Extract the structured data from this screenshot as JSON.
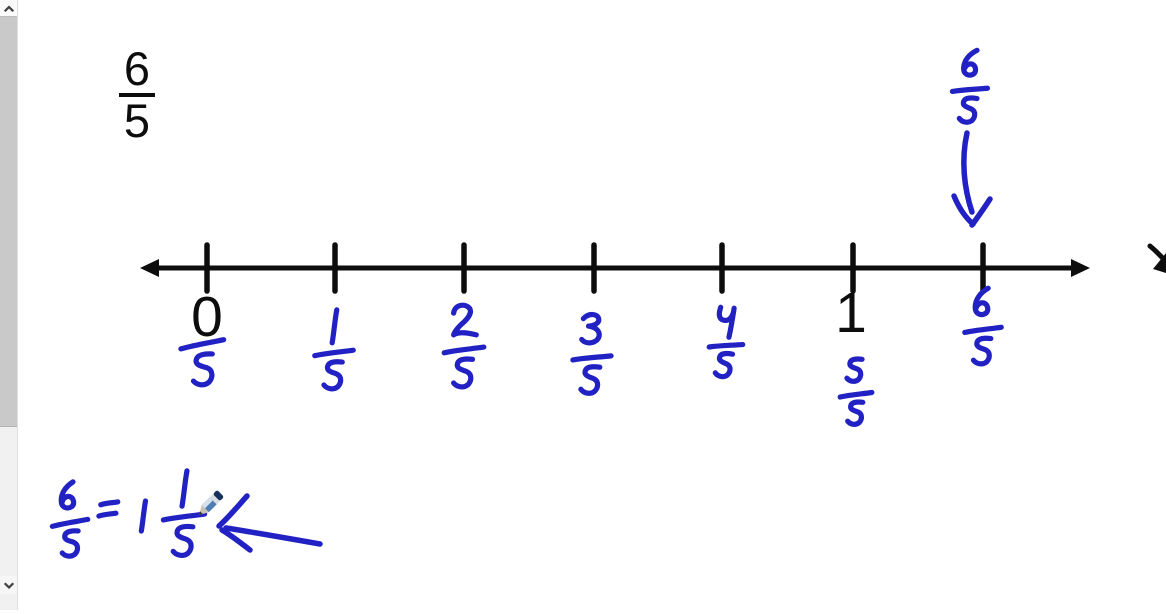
{
  "colors": {
    "background": "#ffffff",
    "ink_blue": "#2222c4",
    "ink_black": "#0d0d0d",
    "scrollbar_thumb": "#c9c9c9",
    "scrollbar_track": "#f1f1f1"
  },
  "scrollbar": {
    "orientation": "vertical",
    "up_icon": "chevron-up",
    "down_icon": "chevron-down"
  },
  "heading_fraction": {
    "numerator": "6",
    "denominator": "5"
  },
  "number_line": {
    "ticks": [
      {
        "printed_label": "0",
        "handwritten_label": "/5"
      },
      {
        "handwritten_label": "1/5"
      },
      {
        "handwritten_label": "2/5"
      },
      {
        "handwritten_label": "3/5"
      },
      {
        "handwritten_label": "4/5"
      },
      {
        "printed_label": "1",
        "handwritten_label": "5/5"
      },
      {
        "handwritten_label": "6/5"
      }
    ]
  },
  "annotation_above_line": {
    "label": "6/5",
    "arrow_direction": "down"
  },
  "equation": {
    "lhs": "6/5",
    "equals": "=",
    "whole": "1",
    "rhs_fraction": "1/5",
    "arrow_direction": "left",
    "reads": "6/5 = 1 1/5"
  },
  "cursor": {
    "tool": "pencil"
  }
}
